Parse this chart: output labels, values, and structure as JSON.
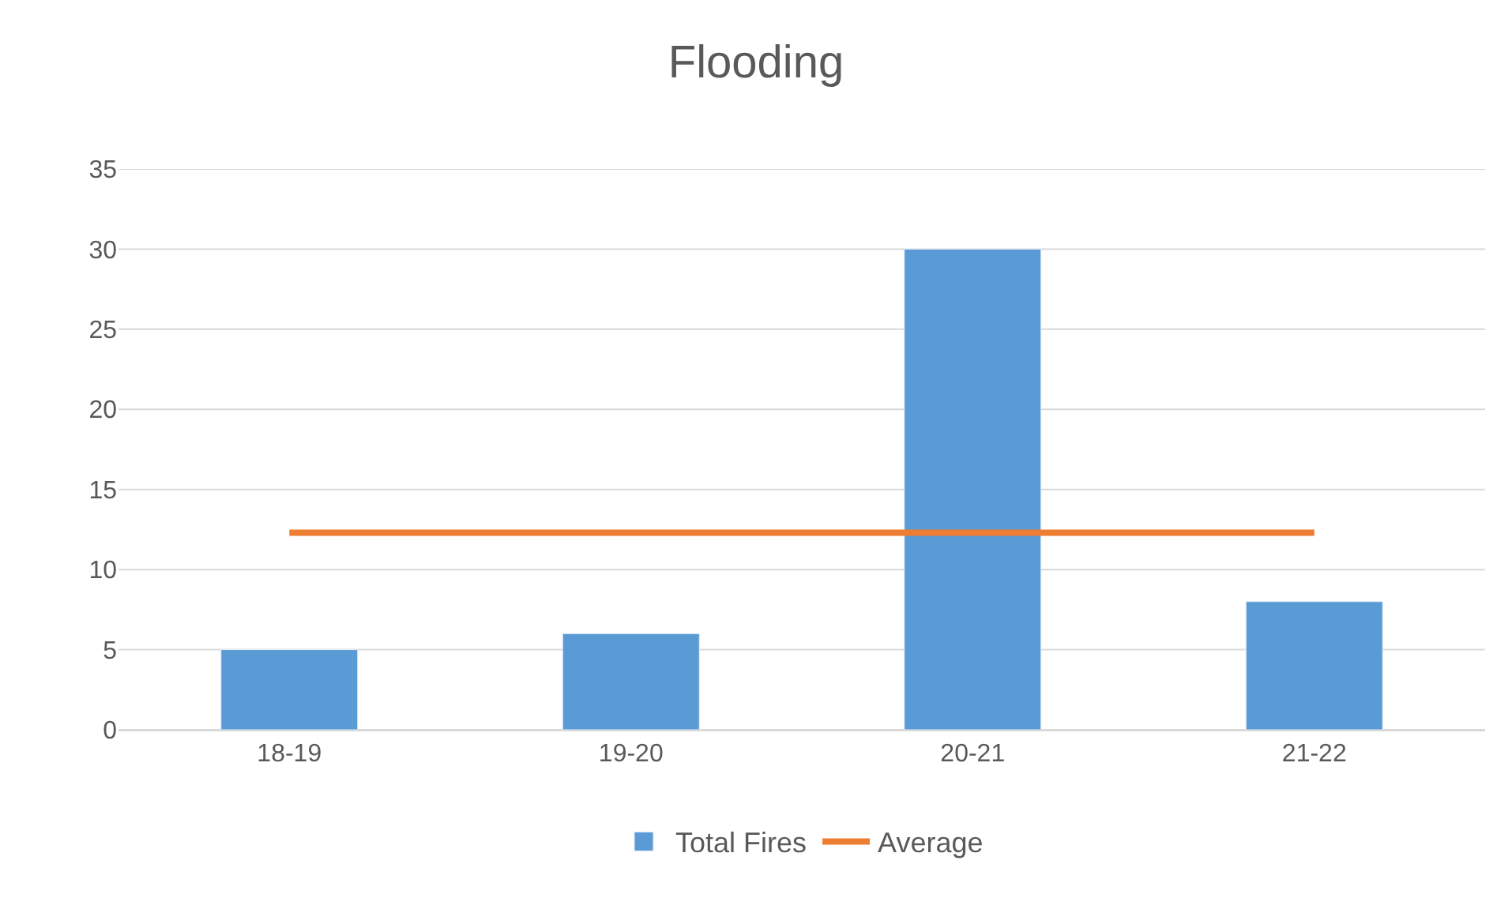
{
  "chart_data": {
    "type": "bar",
    "title": "Flooding",
    "categories": [
      "18-19",
      "19-20",
      "20-21",
      "21-22"
    ],
    "series": [
      {
        "name": "Total Fires",
        "color": "#5b9bd5",
        "values": [
          5,
          6,
          30,
          8
        ]
      },
      {
        "name": "Average",
        "type": "line",
        "color": "#ed7d31",
        "values": [
          12.3,
          12.3,
          12.3,
          12.3
        ]
      }
    ],
    "ylim": [
      0,
      35
    ],
    "yticks": [
      0,
      5,
      10,
      15,
      20,
      25,
      30,
      35
    ],
    "grid": "y",
    "legend": "bottom",
    "marker": "none"
  }
}
